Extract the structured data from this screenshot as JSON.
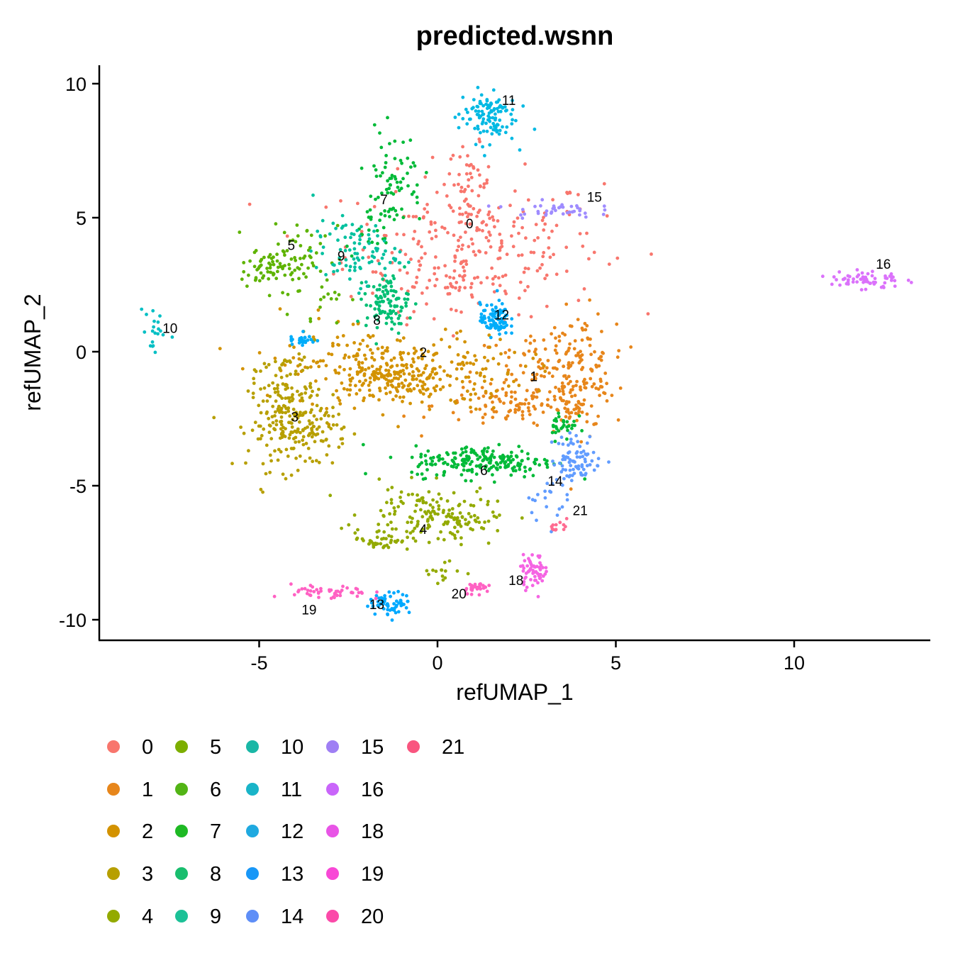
{
  "chart_data": {
    "type": "scatter",
    "title": "predicted.wsnn",
    "xlabel": "refUMAP_1",
    "ylabel": "refUMAP_2",
    "xlim": [
      -9.5,
      13.8
    ],
    "ylim": [
      -10.8,
      10.8
    ],
    "xticks": [
      -5,
      0,
      5,
      10
    ],
    "yticks": [
      -10,
      -5,
      0,
      5,
      10
    ],
    "xtick_labels": [
      "-5",
      "0",
      "5",
      "10"
    ],
    "ytick_labels": [
      "-10",
      "-5",
      "0",
      "5",
      "10"
    ],
    "legend_position": "bottom",
    "series": [
      {
        "name": "0",
        "color": "#F8766D",
        "label_at": [
          0.9,
          4.6
        ],
        "blobs": [
          {
            "x": 1.0,
            "y": 4.0,
            "sx": 1.8,
            "sy": 1.3,
            "n": 260
          },
          {
            "x": 0.9,
            "y": 6.3,
            "sx": 0.3,
            "sy": 0.7,
            "n": 40
          },
          {
            "x": 0.3,
            "y": 2.4,
            "sx": 0.7,
            "sy": 0.5,
            "n": 30
          }
        ]
      },
      {
        "name": "1",
        "color": "#E7861B",
        "label_at": [
          2.7,
          -1.1
        ],
        "blobs": [
          {
            "x": 2.5,
            "y": -2.0,
            "sx": 1.3,
            "sy": 0.45,
            "n": 120
          },
          {
            "x": 4.0,
            "y": -0.7,
            "sx": 0.45,
            "sy": 1.1,
            "n": 120
          },
          {
            "x": 3.0,
            "y": -0.8,
            "sx": 1.0,
            "sy": 0.9,
            "n": 80
          }
        ]
      },
      {
        "name": "2",
        "color": "#D39200",
        "label_at": [
          -0.4,
          -0.2
        ],
        "blobs": [
          {
            "x": -0.8,
            "y": -0.8,
            "sx": 1.6,
            "sy": 0.7,
            "n": 260
          },
          {
            "x": -1.5,
            "y": -1.0,
            "sx": 0.5,
            "sy": 0.3,
            "n": 60
          },
          {
            "x": -2.5,
            "y": -0.2,
            "sx": 1.2,
            "sy": 0.8,
            "n": 60
          }
        ]
      },
      {
        "name": "3",
        "color": "#B79F00",
        "label_at": [
          -4.0,
          -2.6
        ],
        "blobs": [
          {
            "x": -4.2,
            "y": -2.6,
            "sx": 0.55,
            "sy": 0.9,
            "n": 180
          },
          {
            "x": -3.5,
            "y": -2.9,
            "sx": 0.5,
            "sy": 0.5,
            "n": 60
          },
          {
            "x": -4.1,
            "y": -0.7,
            "sx": 0.4,
            "sy": 0.5,
            "n": 30
          }
        ]
      },
      {
        "name": "4",
        "color": "#93AA00",
        "label_at": [
          -0.4,
          -6.8
        ],
        "blobs": [
          {
            "x": -0.3,
            "y": -6.0,
            "sx": 0.9,
            "sy": 0.5,
            "n": 120
          },
          {
            "x": -1.6,
            "y": -7.0,
            "sx": 0.4,
            "sy": 0.2,
            "n": 40
          },
          {
            "x": 0.6,
            "y": -6.5,
            "sx": 0.5,
            "sy": 0.3,
            "n": 40
          },
          {
            "x": 0.0,
            "y": -8.2,
            "sx": 0.3,
            "sy": 0.3,
            "n": 15
          }
        ]
      },
      {
        "name": "5",
        "color": "#5EB300",
        "label_at": [
          -4.1,
          3.8
        ],
        "blobs": [
          {
            "x": -4.9,
            "y": 3.0,
            "sx": 0.3,
            "sy": 0.3,
            "n": 40
          },
          {
            "x": -4.0,
            "y": 3.5,
            "sx": 0.6,
            "sy": 0.6,
            "n": 60
          },
          {
            "x": -3.5,
            "y": 2.2,
            "sx": 0.5,
            "sy": 0.6,
            "n": 20
          }
        ]
      },
      {
        "name": "6",
        "color": "#00BA38",
        "label_at": [
          1.3,
          -4.6
        ],
        "blobs": [
          {
            "x": 1.3,
            "y": -4.1,
            "sx": 1.0,
            "sy": 0.3,
            "n": 200
          },
          {
            "x": 3.5,
            "y": -2.7,
            "sx": 0.2,
            "sy": 0.3,
            "n": 30
          }
        ]
      },
      {
        "name": "7",
        "color": "#00BA38",
        "label_at": [
          -1.5,
          5.5
        ],
        "blobs": [
          {
            "x": -1.2,
            "y": 6.5,
            "sx": 0.4,
            "sy": 0.9,
            "n": 60
          },
          {
            "x": -1.8,
            "y": 5.0,
            "sx": 0.4,
            "sy": 0.6,
            "n": 30
          }
        ]
      },
      {
        "name": "8",
        "color": "#00BF74",
        "label_at": [
          -1.7,
          1.0
        ],
        "blobs": [
          {
            "x": -1.4,
            "y": 1.8,
            "sx": 0.3,
            "sy": 0.5,
            "n": 100
          }
        ]
      },
      {
        "name": "9",
        "color": "#00C19F",
        "label_at": [
          -2.7,
          3.4
        ],
        "blobs": [
          {
            "x": -2.3,
            "y": 3.7,
            "sx": 0.6,
            "sy": 0.6,
            "n": 90
          }
        ]
      },
      {
        "name": "10",
        "color": "#00BFC4",
        "label_at": [
          -7.5,
          0.7
        ],
        "blobs": [
          {
            "x": -8.0,
            "y": 0.8,
            "sx": 0.2,
            "sy": 0.6,
            "n": 20
          }
        ]
      },
      {
        "name": "11",
        "color": "#00B9E3",
        "label_at": [
          2.0,
          9.2
        ],
        "blobs": [
          {
            "x": 1.4,
            "y": 8.8,
            "sx": 0.4,
            "sy": 0.5,
            "n": 110
          }
        ]
      },
      {
        "name": "12",
        "color": "#00ADFA",
        "label_at": [
          1.8,
          1.2
        ],
        "blobs": [
          {
            "x": 1.6,
            "y": 1.2,
            "sx": 0.2,
            "sy": 0.3,
            "n": 90
          },
          {
            "x": -3.8,
            "y": 0.5,
            "sx": 0.2,
            "sy": 0.2,
            "n": 25
          }
        ]
      },
      {
        "name": "13",
        "color": "#00A9FF",
        "label_at": [
          -1.7,
          -9.6
        ],
        "blobs": [
          {
            "x": -1.3,
            "y": -9.4,
            "sx": 0.3,
            "sy": 0.2,
            "n": 60
          }
        ]
      },
      {
        "name": "14",
        "color": "#619CFF",
        "label_at": [
          3.3,
          -5.0
        ],
        "blobs": [
          {
            "x": 3.9,
            "y": -4.0,
            "sx": 0.35,
            "sy": 0.45,
            "n": 80
          },
          {
            "x": 3.0,
            "y": -5.5,
            "sx": 0.3,
            "sy": 0.4,
            "n": 20
          }
        ]
      },
      {
        "name": "15",
        "color": "#9F8CFF",
        "label_at": [
          4.4,
          5.6
        ],
        "blobs": [
          {
            "x": 3.2,
            "y": 5.3,
            "sx": 0.6,
            "sy": 0.15,
            "n": 40
          }
        ]
      },
      {
        "name": "16",
        "color": "#DB72FB",
        "label_at": [
          12.5,
          3.1
        ],
        "blobs": [
          {
            "x": 12.0,
            "y": 2.7,
            "sx": 0.5,
            "sy": 0.2,
            "n": 60
          }
        ]
      },
      {
        "name": "18",
        "color": "#F564E3",
        "label_at": [
          2.2,
          -8.7
        ],
        "blobs": [
          {
            "x": 2.7,
            "y": -8.2,
            "sx": 0.2,
            "sy": 0.3,
            "n": 60
          }
        ]
      },
      {
        "name": "19",
        "color": "#FF61C3",
        "label_at": [
          -3.6,
          -9.8
        ],
        "blobs": [
          {
            "x": -3.0,
            "y": -9.0,
            "sx": 0.55,
            "sy": 0.15,
            "n": 50
          }
        ]
      },
      {
        "name": "20",
        "color": "#FF61C3",
        "label_at": [
          0.6,
          -9.2
        ],
        "blobs": [
          {
            "x": 1.1,
            "y": -8.8,
            "sx": 0.2,
            "sy": 0.1,
            "n": 30
          }
        ]
      },
      {
        "name": "21",
        "color": "#FF6C91",
        "label_at": [
          4.0,
          -6.1
        ],
        "blobs": [
          {
            "x": 3.5,
            "y": -6.5,
            "sx": 0.15,
            "sy": 0.1,
            "n": 12
          }
        ]
      }
    ],
    "legend": {
      "columns": [
        [
          {
            "label": "0",
            "color": "#F8766D"
          },
          {
            "label": "1",
            "color": "#E7861B"
          },
          {
            "label": "2",
            "color": "#D39200"
          },
          {
            "label": "3",
            "color": "#B79F00"
          },
          {
            "label": "4",
            "color": "#93AA00"
          }
        ],
        [
          {
            "label": "5",
            "color": "#7CAE00"
          },
          {
            "label": "6",
            "color": "#52B415"
          },
          {
            "label": "7",
            "color": "#1EB924"
          },
          {
            "label": "8",
            "color": "#19BE6E"
          },
          {
            "label": "9",
            "color": "#1CC197"
          }
        ],
        [
          {
            "label": "10",
            "color": "#1AB7A6"
          },
          {
            "label": "11",
            "color": "#19B4C8"
          },
          {
            "label": "12",
            "color": "#1FA9E0"
          },
          {
            "label": "13",
            "color": "#1897F7"
          },
          {
            "label": "14",
            "color": "#5E8EF7"
          }
        ],
        [
          {
            "label": "15",
            "color": "#9F7FF4"
          },
          {
            "label": "16",
            "color": "#C965FA"
          },
          {
            "label": "18",
            "color": "#E854E6"
          },
          {
            "label": "19",
            "color": "#F848D6"
          },
          {
            "label": "20",
            "color": "#FB4AA9"
          }
        ],
        [
          {
            "label": "21",
            "color": "#F9557F"
          }
        ]
      ]
    }
  }
}
